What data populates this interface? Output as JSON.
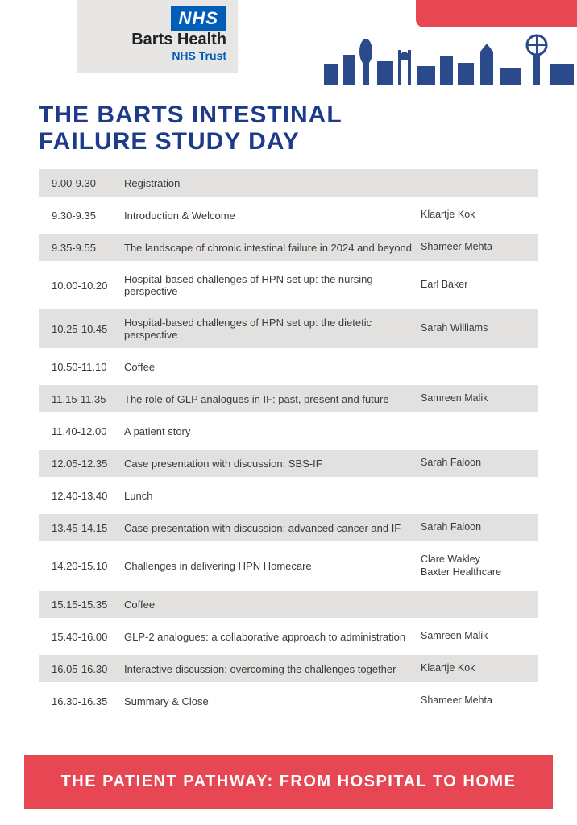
{
  "logo": {
    "nhs": "NHS",
    "barts": "Barts Health",
    "trust": "NHS Trust"
  },
  "title_line1": "THE BARTS INTESTINAL",
  "title_line2": "FAILURE STUDY DAY",
  "schedule": [
    {
      "time": "9.00-9.30",
      "title": "Registration",
      "speaker": "",
      "shaded": true
    },
    {
      "time": "9.30-9.35",
      "title": "Introduction & Welcome",
      "speaker": "Klaartje Kok",
      "shaded": false
    },
    {
      "time": "9.35-9.55",
      "title": "The landscape of chronic intestinal failure in 2024 and beyond",
      "speaker": "Shameer Mehta",
      "shaded": true
    },
    {
      "time": "10.00-10.20",
      "title": "Hospital-based challenges of HPN set up: the nursing perspective",
      "speaker": "Earl Baker",
      "shaded": false
    },
    {
      "time": "10.25-10.45",
      "title": "Hospital-based challenges of HPN set up: the dietetic perspective",
      "speaker": "Sarah Williams",
      "shaded": true
    },
    {
      "time": "10.50-11.10",
      "title": "Coffee",
      "speaker": "",
      "shaded": false
    },
    {
      "time": "11.15-11.35",
      "title": "The role of GLP analogues in IF: past, present and future",
      "speaker": "Samreen Malik",
      "shaded": true
    },
    {
      "time": "11.40-12.00",
      "title": "A patient story",
      "speaker": "",
      "shaded": false
    },
    {
      "time": "12.05-12.35",
      "title": "Case presentation with discussion: SBS-IF",
      "speaker": "Sarah Faloon",
      "shaded": true
    },
    {
      "time": "12.40-13.40",
      "title": "Lunch",
      "speaker": "",
      "shaded": false
    },
    {
      "time": "13.45-14.15",
      "title": "Case presentation with discussion: advanced cancer and IF",
      "speaker": "Sarah Faloon",
      "shaded": true
    },
    {
      "time": "14.20-15.10",
      "title": "Challenges in delivering HPN Homecare",
      "speaker": "Clare Wakley\nBaxter Healthcare",
      "shaded": false
    },
    {
      "time": "15.15-15.35",
      "title": "Coffee",
      "speaker": "",
      "shaded": true
    },
    {
      "time": "15.40-16.00",
      "title": "GLP-2 analogues: a collaborative approach to administration",
      "speaker": "Samreen Malik",
      "shaded": false
    },
    {
      "time": "16.05-16.30",
      "title": "Interactive discussion: overcoming the challenges together",
      "speaker": "Klaartje Kok",
      "shaded": true
    },
    {
      "time": "16.30-16.35",
      "title": "Summary & Close",
      "speaker": "Shameer Mehta",
      "shaded": false
    }
  ],
  "footer": "THE PATIENT PATHWAY: FROM HOSPITAL TO HOME",
  "colors": {
    "nhs_blue": "#005eb8",
    "title_blue": "#1e3a8a",
    "accent_red": "#e74753",
    "row_shade": "#e3e1df",
    "logo_bg": "#e8e6e4",
    "text": "#3a3a3a",
    "skyline": "#2b4a8b"
  }
}
